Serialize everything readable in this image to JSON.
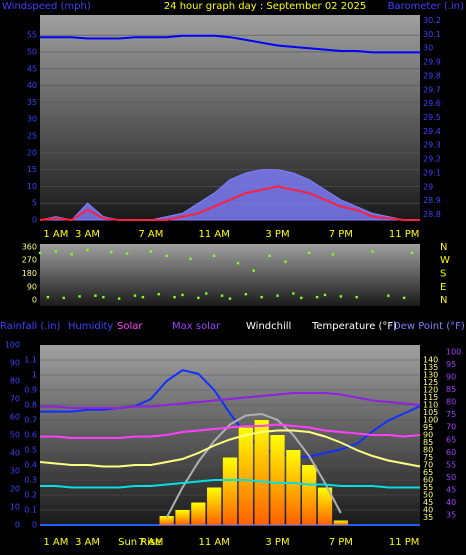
{
  "chart_data": [
    {
      "type": "line",
      "title": "24 hour graph day : September 02 2025",
      "title_color": "#ffff00",
      "left_label": "Windspeed (mph)",
      "right_label": "Barometer (.in)",
      "label_color": "#4040ff",
      "x": [
        0,
        1,
        2,
        3,
        4,
        5,
        6,
        7,
        8,
        9,
        10,
        11,
        12,
        13,
        14,
        15,
        16,
        17,
        18,
        19,
        20,
        21,
        22,
        23,
        24
      ],
      "xlim": [
        0,
        24
      ],
      "xticks": [
        {
          "value": 1,
          "label": "1 AM"
        },
        {
          "value": 3,
          "label": "3 AM"
        },
        {
          "value": 7,
          "label": "7 AM"
        },
        {
          "value": 11,
          "label": "11 AM"
        },
        {
          "value": 15,
          "label": "3 PM"
        },
        {
          "value": 19,
          "label": "7 PM"
        },
        {
          "value": 23,
          "label": "11 PM"
        }
      ],
      "xtick_color": "#ffff00",
      "ylim": [
        0,
        61
      ],
      "yticks": [
        0,
        5,
        10,
        15,
        20,
        25,
        30,
        35,
        40,
        45,
        50,
        55
      ],
      "y2lim": [
        28.76,
        30.24
      ],
      "y2ticks": [
        28.8,
        28.9,
        29,
        29.1,
        29.2,
        29.3,
        29.4,
        29.5,
        29.6,
        29.7,
        29.8,
        29.9,
        30,
        30.1,
        30.2
      ],
      "tick_colors": {
        "y": "#4040ff",
        "y2": "#4040ff"
      },
      "grid": true,
      "series": [
        {
          "style": "area",
          "color": "#8080ff",
          "values": [
            0,
            1,
            0,
            5,
            1,
            0,
            0,
            0,
            1,
            2,
            5,
            8,
            12,
            14,
            15,
            15,
            14,
            12,
            9,
            6,
            4,
            2,
            1,
            0,
            0
          ]
        },
        {
          "style": "line",
          "color": "#ff2040",
          "values": [
            0,
            0.5,
            0,
            3,
            0.5,
            0,
            0,
            0,
            0,
            1,
            2,
            4,
            6,
            8,
            9,
            10,
            9,
            8,
            6,
            4,
            3,
            1,
            0.5,
            0,
            0
          ]
        },
        {
          "style": "line",
          "color": "#0000ff",
          "axis": "y2",
          "values": [
            30.08,
            30.08,
            30.08,
            30.07,
            30.07,
            30.07,
            30.08,
            30.08,
            30.08,
            30.09,
            30.09,
            30.09,
            30.08,
            30.06,
            30.04,
            30.02,
            30.01,
            30.0,
            29.99,
            29.98,
            29.98,
            29.97,
            29.97,
            29.97,
            29.97
          ]
        }
      ]
    },
    {
      "type": "scatter",
      "color": "#80ff20",
      "x": [
        0,
        0.5,
        1,
        1.5,
        2,
        2.5,
        3,
        3.5,
        4,
        4.5,
        5,
        5.5,
        6,
        6.5,
        7,
        7.5,
        8,
        8.5,
        9,
        9.5,
        10,
        10.5,
        11,
        11.5,
        12,
        12.5,
        13,
        13.5,
        14,
        14.5,
        15,
        15.5,
        16,
        16.5,
        17,
        17.5,
        18,
        18.5,
        19,
        20,
        21,
        22,
        23,
        23.5
      ],
      "values": [
        320,
        20,
        330,
        15,
        310,
        25,
        340,
        30,
        20,
        325,
        10,
        315,
        30,
        20,
        330,
        40,
        300,
        20,
        35,
        280,
        15,
        45,
        300,
        30,
        10,
        250,
        40,
        200,
        20,
        300,
        30,
        260,
        45,
        15,
        320,
        20,
        35,
        310,
        25,
        20,
        330,
        30,
        15,
        320
      ],
      "xlim": [
        0,
        24
      ],
      "ylim": [
        -40,
        380
      ],
      "yticks": [
        0,
        90,
        180,
        270,
        360
      ],
      "tick_colors": {
        "y": "#ffff80"
      },
      "compass": [
        "N",
        "W",
        "S",
        "E",
        "N"
      ],
      "compass_color": "#ffff00"
    },
    {
      "type": "line",
      "x": [
        0,
        1,
        2,
        3,
        4,
        5,
        6,
        7,
        8,
        9,
        10,
        11,
        12,
        13,
        14,
        15,
        16,
        17,
        18,
        19,
        20,
        21,
        22,
        23,
        24
      ],
      "xlim": [
        0,
        24
      ],
      "xticks": [
        {
          "value": 1,
          "label": "1 AM"
        },
        {
          "value": 3,
          "label": "3 AM"
        },
        {
          "value": 7,
          "label": "7 AM"
        },
        {
          "value": 11,
          "label": "11 AM"
        },
        {
          "value": 15,
          "label": "3 PM"
        },
        {
          "value": 19,
          "label": "7 PM"
        },
        {
          "value": 23,
          "label": "11 PM"
        }
      ],
      "xtick_color": "#ffff00",
      "annotations": [
        {
          "text": "Sun Rise",
          "x": 6.3
        }
      ],
      "ylim": [
        0,
        1.2
      ],
      "yticks": [
        0,
        0.1,
        0.2,
        0.3,
        0.4,
        0.5,
        0.6,
        0.7,
        0.8,
        0.9,
        1,
        1.1
      ],
      "y2lim": [
        30,
        150
      ],
      "y2ticks": [
        35,
        40,
        45,
        50,
        55,
        60,
        65,
        70,
        75,
        80,
        85,
        90,
        95,
        100,
        105,
        110,
        115,
        120,
        125,
        130,
        135,
        140
      ],
      "y3lim": [
        0,
        100
      ],
      "y3ticks": [
        0,
        10,
        20,
        30,
        40,
        50,
        60,
        70,
        80,
        90,
        100
      ],
      "y4lim": [
        31,
        102.8
      ],
      "y4ticks": [
        35,
        40,
        45,
        50,
        55,
        60,
        65,
        70,
        75,
        80,
        85,
        90,
        95,
        100
      ],
      "tick_colors": {
        "y": "#4040ff",
        "y2": "#ffff80",
        "y3": "#4040ff",
        "y4": "#a040ff"
      },
      "grid": true,
      "series": [
        {
          "name": "Rainfall (.in)",
          "legend_color": "#4040ff",
          "style": "line",
          "color": "#2060ff",
          "values": [
            0,
            0,
            0,
            0,
            0,
            0,
            0,
            0,
            0,
            0,
            0,
            0,
            0,
            0,
            0,
            0,
            0,
            0,
            0,
            0,
            0,
            0,
            0,
            0,
            0
          ]
        },
        {
          "name": "Humidity",
          "legend_color": "#4040ff",
          "style": "line",
          "color": "#1030ff",
          "axis": "y3",
          "values": [
            63,
            63,
            63,
            64,
            64,
            65,
            66,
            70,
            80,
            86,
            84,
            75,
            62,
            50,
            42,
            40,
            38,
            38,
            40,
            42,
            45,
            52,
            58,
            62,
            66
          ]
        },
        {
          "name": "Solar",
          "legend_color": "#ff40ff",
          "style": "bar",
          "color": "#ffa000",
          "axis": "y2",
          "values": [
            null,
            null,
            null,
            null,
            null,
            null,
            null,
            null,
            36,
            40,
            45,
            55,
            75,
            95,
            100,
            90,
            80,
            70,
            55,
            33,
            null,
            null,
            null,
            null,
            null
          ]
        },
        {
          "name": "Max solar",
          "legend_color": "#a040ff",
          "style": "line",
          "color": "#b0b0b0",
          "axis": "y2",
          "values": [
            null,
            null,
            null,
            null,
            null,
            null,
            null,
            null,
            35,
            55,
            72,
            86,
            97,
            103,
            104,
            100,
            90,
            76,
            58,
            38,
            null,
            null,
            null,
            null,
            null
          ]
        },
        {
          "name": "Windchill",
          "legend_color": "#ffffff",
          "style": "line",
          "color": "#ffff80",
          "axis": "y2",
          "values": [
            72,
            71,
            70,
            70,
            69,
            69,
            70,
            70,
            72,
            74,
            78,
            83,
            87,
            90,
            92,
            93,
            93,
            92,
            89,
            85,
            80,
            76,
            73,
            71,
            69
          ]
        },
        {
          "name": "Temperature (°F)",
          "legend_color": "#ffffff",
          "style": "line",
          "color": "#ff40ff",
          "axis": "y2",
          "values": [
            89,
            89,
            88,
            88,
            88,
            88,
            89,
            89,
            90,
            92,
            93,
            94,
            95,
            96,
            96,
            97,
            96,
            95,
            93,
            92,
            91,
            90,
            90,
            89,
            90
          ]
        },
        {
          "name": "Dew Point (°F)",
          "legend_color": "#8080ff",
          "style": "line",
          "color": "#00e0e0",
          "axis": "y2",
          "values": [
            56,
            56,
            55,
            55,
            55,
            55,
            56,
            56,
            57,
            58,
            59,
            60,
            60,
            60,
            59,
            58,
            58,
            57,
            57,
            56,
            56,
            56,
            55,
            55,
            55
          ]
        },
        {
          "style": "line",
          "color": "#9020e0",
          "axis": "y2",
          "values": [
            109,
            109,
            108,
            108,
            108,
            108,
            109,
            109,
            110,
            111,
            112,
            113,
            114,
            115,
            116,
            117,
            118,
            118,
            118,
            117,
            115,
            113,
            112,
            111,
            110
          ]
        }
      ]
    }
  ]
}
